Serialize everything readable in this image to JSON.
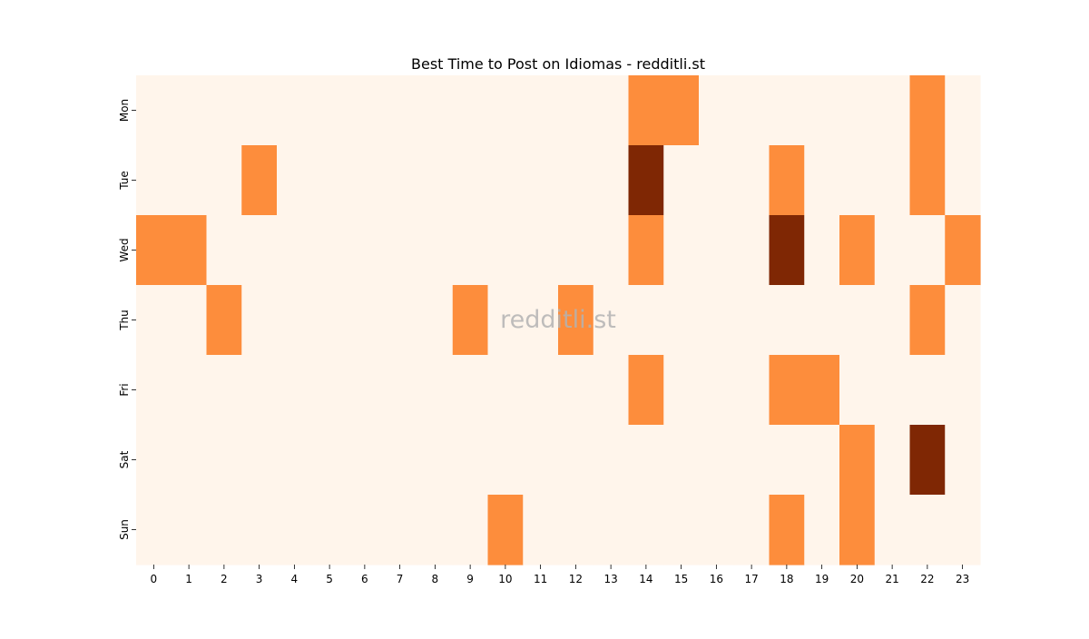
{
  "chart_data": {
    "type": "heatmap",
    "title": "Best Time to Post on Idiomas - redditli.st",
    "watermark": "redditli.st",
    "xlabel": "",
    "ylabel": "",
    "x": [
      0,
      1,
      2,
      3,
      4,
      5,
      6,
      7,
      8,
      9,
      10,
      11,
      12,
      13,
      14,
      15,
      16,
      17,
      18,
      19,
      20,
      21,
      22,
      23
    ],
    "y": [
      "Mon",
      "Tue",
      "Wed",
      "Thu",
      "Fri",
      "Sat",
      "Sun"
    ],
    "values": [
      [
        0,
        0,
        0,
        0,
        0,
        0,
        0,
        0,
        0,
        0,
        0,
        0,
        0,
        0,
        1,
        1,
        0,
        0,
        0,
        0,
        0,
        0,
        1,
        0
      ],
      [
        0,
        0,
        0,
        1,
        0,
        0,
        0,
        0,
        0,
        0,
        0,
        0,
        0,
        0,
        2,
        0,
        0,
        0,
        1,
        0,
        0,
        0,
        1,
        0
      ],
      [
        1,
        1,
        0,
        0,
        0,
        0,
        0,
        0,
        0,
        0,
        0,
        0,
        0,
        0,
        1,
        0,
        0,
        0,
        2,
        0,
        1,
        0,
        0,
        1
      ],
      [
        0,
        0,
        1,
        0,
        0,
        0,
        0,
        0,
        0,
        1,
        0,
        0,
        1,
        0,
        0,
        0,
        0,
        0,
        0,
        0,
        0,
        0,
        1,
        0
      ],
      [
        0,
        0,
        0,
        0,
        0,
        0,
        0,
        0,
        0,
        0,
        0,
        0,
        0,
        0,
        1,
        0,
        0,
        0,
        1,
        1,
        0,
        0,
        0,
        0
      ],
      [
        0,
        0,
        0,
        0,
        0,
        0,
        0,
        0,
        0,
        0,
        0,
        0,
        0,
        0,
        0,
        0,
        0,
        0,
        0,
        0,
        1,
        0,
        2,
        0
      ],
      [
        0,
        0,
        0,
        0,
        0,
        0,
        0,
        0,
        0,
        0,
        1,
        0,
        0,
        0,
        0,
        0,
        0,
        0,
        1,
        0,
        1,
        0,
        0,
        0
      ]
    ],
    "level_colors": [
      "#fff5eb",
      "#fd8d3c",
      "#7f2704"
    ],
    "grid": false,
    "colorbar": false
  }
}
